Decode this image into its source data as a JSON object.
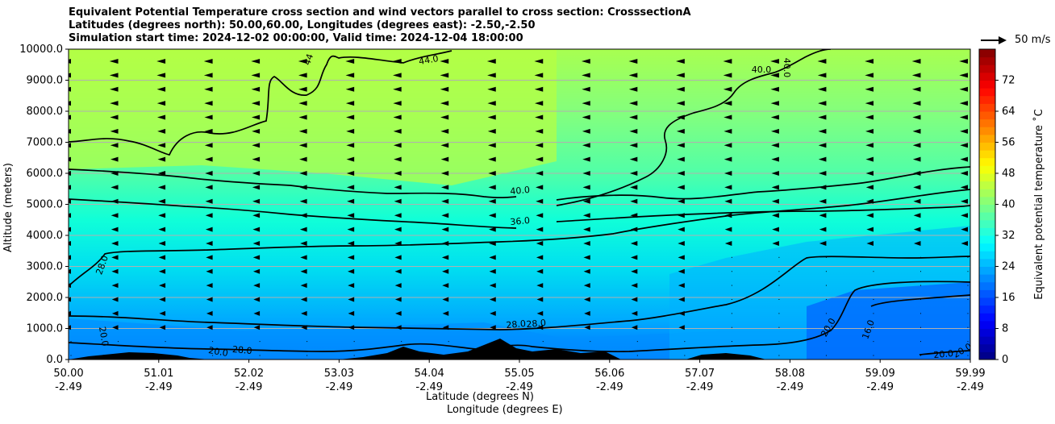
{
  "title_lines": [
    "Equivalent Potential Temperature cross section and wind vectors parallel to cross section: CrosssectionA",
    "Latitudes (degrees north): 50.00,60.00, Longitudes (degrees east): -2.50,-2.50",
    "Simulation start time: 2024-12-02 00:00:00, Valid time: 2024-12-04 18:00:00"
  ],
  "quiver_key_label": "50 m/s",
  "chart_data": {
    "type": "heatmap",
    "title": "Equivalent Potential Temperature cross section and wind vectors parallel to cross section: CrosssectionA",
    "ylabel": "Altitude (meters)",
    "xlabel_lines": [
      "Latitude (degrees N)",
      "Longitude (degrees E)"
    ],
    "colorbar_label": "Equivalent potential temperature $^\\circ$C",
    "colorbar_label_display": "Equivalent potential temperature ˚C",
    "ylim": [
      0,
      10000
    ],
    "yticks": [
      "0.0",
      "1000.0",
      "2000.0",
      "3000.0",
      "4000.0",
      "5000.0",
      "6000.0",
      "7000.0",
      "8000.0",
      "9000.0",
      "10000.0"
    ],
    "xticks": [
      {
        "lat": "50.00",
        "lon": "-2.49"
      },
      {
        "lat": "51.01",
        "lon": "-2.49"
      },
      {
        "lat": "52.02",
        "lon": "-2.49"
      },
      {
        "lat": "53.03",
        "lon": "-2.49"
      },
      {
        "lat": "54.04",
        "lon": "-2.49"
      },
      {
        "lat": "55.05",
        "lon": "-2.49"
      },
      {
        "lat": "56.06",
        "lon": "-2.49"
      },
      {
        "lat": "57.07",
        "lon": "-2.49"
      },
      {
        "lat": "58.08",
        "lon": "-2.49"
      },
      {
        "lat": "59.09",
        "lon": "-2.49"
      },
      {
        "lat": "59.99",
        "lon": "-2.49"
      }
    ],
    "colorbar_ticks": [
      0,
      8,
      16,
      24,
      32,
      40,
      48,
      56,
      64,
      72
    ],
    "colorbar_range": [
      0,
      80
    ],
    "contour_labels": [
      "44",
      "44.0",
      "40.0",
      "40.0",
      "40.0",
      "28.0",
      "36.0",
      "28.0",
      "20.0",
      "20.0",
      "28.0",
      "28.0",
      "20.0",
      "16.0",
      "20.0",
      "20.0"
    ],
    "wind_vector_reference": "50 m/s",
    "grid": true
  }
}
